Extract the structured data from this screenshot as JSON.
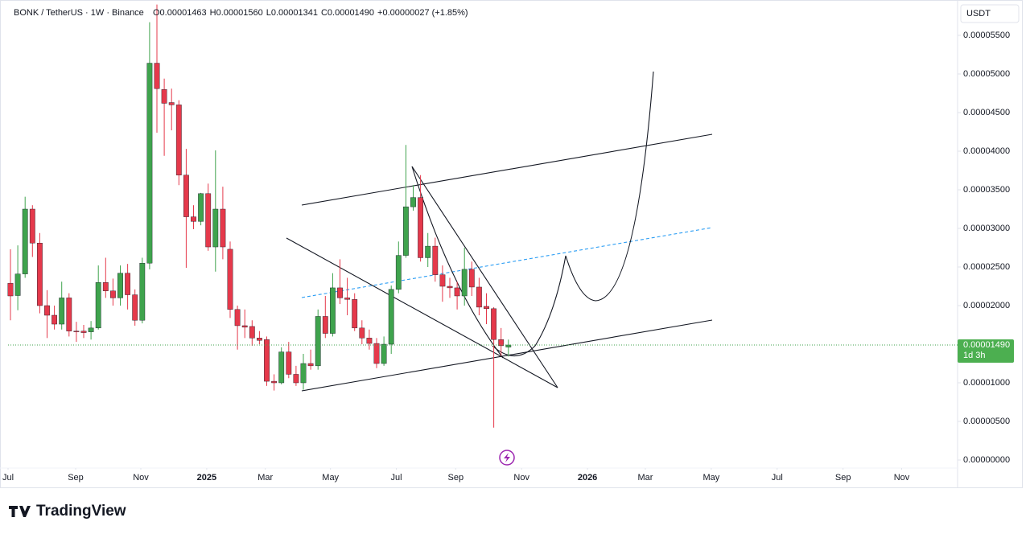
{
  "chart_data": {
    "type": "candlestick",
    "title": "BONK / TetherUS · 1W · Binance",
    "legend_values": [
      "O0.00001463",
      "H0.00001560",
      "L0.00001341",
      "C0.00001490",
      "+0.00000027 (+1.85%)"
    ],
    "currency": "USDT",
    "last_price": {
      "value": 1.49e-05,
      "label": "0.00001490"
    },
    "countdown": "1d 3h",
    "brand": "TradingView",
    "up_color": "#3fa34d",
    "down_color": "#e5394b",
    "open": [
      2.29e-05,
      2.13e-05,
      2.41e-05,
      3.25e-05,
      2.81e-05,
      2e-05,
      1.875e-05,
      1.76e-05,
      2.1e-05,
      1.67e-05,
      1.67e-05,
      1.66e-05,
      1.71e-05,
      2.3e-05,
      2.19e-05,
      2.1e-05,
      2.42e-05,
      2.14e-05,
      1.81e-05,
      2.55e-05,
      5.14e-05,
      4.8e-05,
      4.63e-05,
      4.6e-05,
      3.69e-05,
      3.15e-05,
      3.09e-05,
      3.45e-05,
      2.76e-05,
      3.25e-05,
      2.73e-05,
      1.95e-05,
      1.74e-05,
      1.73e-05,
      1.58e-05,
      1.56e-05,
      1.02e-05,
      1e-05,
      1.4e-05,
      1.11e-05,
      1e-05,
      1.25e-05,
      1.22e-05,
      1.86e-05,
      1.64e-05,
      2.23e-05,
      2.1e-05,
      2.08e-05,
      1.71e-05,
      1.58e-05,
      1.51e-05,
      1.25e-05,
      1.5e-05,
      2.21e-05,
      2.65e-05,
      3.28e-05,
      3.4e-05,
      2.62e-05,
      2.77e-05,
      2.4e-05,
      2.25e-05,
      2.23e-05,
      2.125e-05,
      2.47e-05,
      2.24e-05,
      1.99e-05,
      1.96e-05,
      1.56e-05,
      1.463e-05
    ],
    "high": [
      2.73e-05,
      2.78e-05,
      3.41e-05,
      3.3e-05,
      2.94e-05,
      2.2e-05,
      2e-05,
      2.31e-05,
      2.16e-05,
      1.79e-05,
      1.75e-05,
      1.8e-05,
      2.52e-05,
      2.62e-05,
      2.35e-05,
      2.52e-05,
      2.54e-05,
      2.21e-05,
      2.62e-05,
      5.67e-05,
      5.9e-05,
      4.94e-05,
      4.81e-05,
      4.66e-05,
      4.03e-05,
      3.3e-05,
      3.46e-05,
      3.58e-05,
      4.01e-05,
      3.54e-05,
      2.83e-05,
      2e-05,
      1.95e-05,
      1.81e-05,
      1.67e-05,
      1.6e-05,
      1.11e-05,
      1.46e-05,
      1.53e-05,
      1.22e-05,
      1.375e-05,
      1.43e-05,
      1.95e-05,
      2.125e-05,
      2.42e-05,
      2.6e-05,
      2.36e-05,
      2.16e-05,
      1.81e-05,
      1.69e-05,
      1.58e-05,
      1.6e-05,
      2.26e-05,
      2.83e-05,
      4.08e-05,
      3.56e-05,
      3.69e-05,
      2.94e-05,
      2.88e-05,
      2.52e-05,
      2.36e-05,
      2.31e-05,
      2.75e-05,
      2.57e-05,
      2.36e-05,
      2.16e-05,
      1.98e-05,
      1.71e-05,
      1.56e-05
    ],
    "low": [
      1.81e-05,
      1.94e-05,
      2.36e-05,
      2.63e-05,
      1.9e-05,
      1.58e-05,
      1.69e-05,
      1.69e-05,
      1.6e-05,
      1.53e-05,
      1.58e-05,
      1.56e-05,
      1.69e-05,
      2.1e-05,
      2e-05,
      2e-05,
      1.95e-05,
      1.74e-05,
      1.77e-05,
      2.47e-05,
      4.24e-05,
      3.94e-05,
      4.27e-05,
      3.56e-05,
      2.49e-05,
      2.99e-05,
      3.04e-05,
      2.71e-05,
      2.44e-05,
      2.6e-05,
      1.84e-05,
      1.43e-05,
      1.58e-05,
      1.48e-05,
      1.5e-05,
      9.6e-06,
      9e-06,
      9.8e-06,
      1.06e-05,
      9.6e-06,
      9.1e-06,
      1.17e-05,
      1.17e-05,
      1.58e-05,
      1.6e-05,
      2.02e-05,
      1.875e-05,
      1.67e-05,
      1.5e-05,
      1.43e-05,
      1.19e-05,
      1.22e-05,
      1.375e-05,
      2.16e-05,
      2.62e-05,
      3.23e-05,
      2.57e-05,
      2.5e-05,
      2.31e-05,
      2.05e-05,
      2.1e-05,
      1.95e-05,
      2e-05,
      2.125e-05,
      1.875e-05,
      1.76e-05,
      4.2e-06,
      1.35e-05,
      1.341e-05
    ],
    "close": [
      2.125e-05,
      2.41e-05,
      3.25e-05,
      2.81e-05,
      2e-05,
      1.875e-05,
      1.76e-05,
      2.1e-05,
      1.67e-05,
      1.66e-05,
      1.65e-05,
      1.71e-05,
      2.3e-05,
      2.19e-05,
      2.1e-05,
      2.42e-05,
      2.14e-05,
      1.81e-05,
      2.55e-05,
      5.14e-05,
      4.81e-05,
      4.62e-05,
      4.6e-05,
      3.69e-05,
      3.15e-05,
      3.09e-05,
      3.45e-05,
      2.76e-05,
      3.25e-05,
      2.76e-05,
      1.95e-05,
      1.74e-05,
      1.72e-05,
      1.58e-05,
      1.55e-05,
      1.02e-05,
      1e-05,
      1.4e-05,
      1.11e-05,
      1e-05,
      1.25e-05,
      1.22e-05,
      1.86e-05,
      1.64e-05,
      2.23e-05,
      2.1e-05,
      2.08e-05,
      1.71e-05,
      1.58e-05,
      1.51e-05,
      1.25e-05,
      1.5e-05,
      2.21e-05,
      2.65e-05,
      3.28e-05,
      3.4e-05,
      2.62e-05,
      2.77e-05,
      2.4e-05,
      2.25e-05,
      2.23e-05,
      2.125e-05,
      2.47e-05,
      2.24e-05,
      1.98e-05,
      1.96e-05,
      1.56e-05,
      1.48e-05,
      1.49e-05
    ],
    "ylim": [
      -3.54e-06,
      5.906e-05
    ],
    "yticks": [
      {
        "value": 0,
        "label": "0.00000000"
      },
      {
        "value": 5e-06,
        "label": "0.00000500"
      },
      {
        "value": 1e-05,
        "label": "0.00001000"
      },
      {
        "value": 1.5e-05,
        "label": "0.00001500"
      },
      {
        "value": 2e-05,
        "label": "0.00002000"
      },
      {
        "value": 2.5e-05,
        "label": "0.00002500"
      },
      {
        "value": 3e-05,
        "label": "0.00003000"
      },
      {
        "value": 3.5e-05,
        "label": "0.00003500"
      },
      {
        "value": 4e-05,
        "label": "0.00004000"
      },
      {
        "value": 4.5e-05,
        "label": "0.00004500"
      },
      {
        "value": 5e-05,
        "label": "0.00005000"
      },
      {
        "value": 5.5e-05,
        "label": "0.00005500"
      }
    ],
    "xlim": [
      -0.33,
      129.34
    ],
    "xticks": [
      {
        "value": -0.33,
        "label": "Jul"
      },
      {
        "value": 8.9,
        "label": "Sep"
      },
      {
        "value": 17.8,
        "label": "Nov"
      },
      {
        "value": 26.8,
        "label": "2025"
      },
      {
        "value": 34.8,
        "label": "Mar"
      },
      {
        "value": 43.7,
        "label": "May"
      },
      {
        "value": 52.7,
        "label": "Jul"
      },
      {
        "value": 60.8,
        "label": "Sep"
      },
      {
        "value": 69.8,
        "label": "Nov"
      },
      {
        "value": 78.8,
        "label": "2026"
      },
      {
        "value": 86.7,
        "label": "Mar"
      },
      {
        "value": 95.7,
        "label": "May"
      },
      {
        "value": 104.7,
        "label": "Jul"
      },
      {
        "value": 113.7,
        "label": "Sep"
      },
      {
        "value": 121.7,
        "label": "Nov"
      }
    ],
    "grid": false
  }
}
